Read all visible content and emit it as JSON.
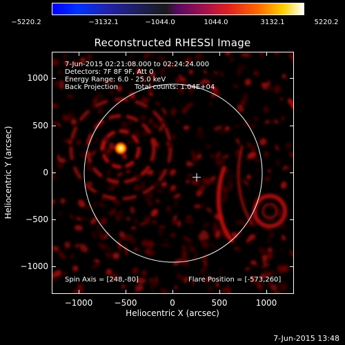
{
  "colorbar": {
    "ticks": [
      "−5220.2",
      "−3132.1",
      "−1044.0",
      "1044.0",
      "3132.1",
      "5220.2"
    ],
    "colors": [
      "#0000ff",
      "#1a1a1a",
      "#a01050",
      "#ff6a00",
      "#ffffff"
    ]
  },
  "title": "Reconstructed RHESSI Image",
  "info": {
    "time_range": "7-Jun-2015 02:21:08.000 to 02:24:24.000",
    "detectors": "Detectors: 7F 8F 9F, Att 0",
    "energy": "Energy Range: 6.0 - 25.0 keV",
    "method": "Back Projection",
    "counts": "Total counts: 1.04E+04",
    "spin_axis": "Spin Axis = [248,-80]",
    "flare_position": "Flare Position = [-573,260]"
  },
  "axes": {
    "xlabel": "Heliocentric X (arcsec)",
    "ylabel": "Heliocentric Y (arcsec)",
    "xticks": [
      "−1000",
      "−500",
      "0",
      "500",
      "1000"
    ],
    "yticks": [
      "1000",
      "500",
      "0",
      "−500",
      "−1000"
    ],
    "range_x": [
      -1300,
      1300
    ],
    "range_y": [
      -1300,
      1300
    ]
  },
  "timestamp": "7-Jun-2015 13:48"
}
